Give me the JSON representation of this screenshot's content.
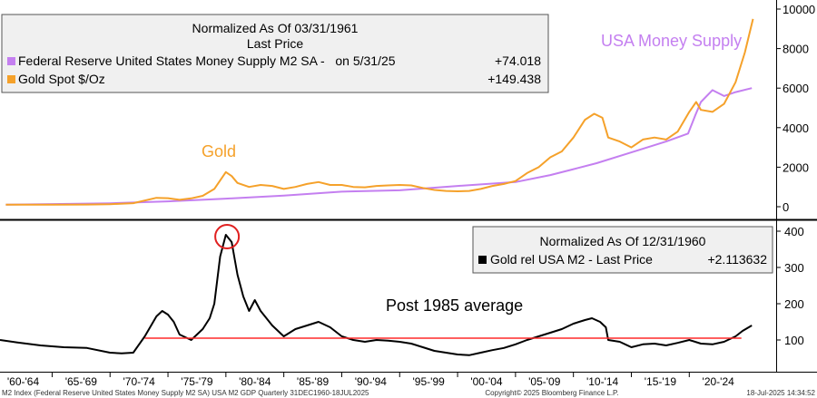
{
  "chart_data": [
    {
      "type": "line",
      "panel": "top",
      "ylim": [
        -500,
        10000
      ],
      "yticks": [
        0,
        2000,
        4000,
        6000,
        8000,
        10000
      ],
      "xlim": [
        1960.5,
        2027.5
      ],
      "legend": {
        "title_line1": "Normalized As Of 03/31/1961",
        "title_line2": "Last Price",
        "entries": [
          {
            "label": "Federal Reserve United States Money Supply M2 SA -   on 5/31/25",
            "value": "+74.018",
            "color": "#c47ff0"
          },
          {
            "label": "Gold Spot $/Oz",
            "value": "+149.438",
            "color": "#f5a12a"
          }
        ]
      },
      "annotations": [
        {
          "text": "Gold",
          "color": "#f5a12a"
        },
        {
          "text": "USA Money Supply",
          "color": "#c47ff0"
        }
      ],
      "series": [
        {
          "name": "Federal Reserve United States Money Supply M2 SA",
          "color": "#c47ff0",
          "points": [
            [
              1961,
              100
            ],
            [
              1965,
              135
            ],
            [
              1970,
              175
            ],
            [
              1975,
              270
            ],
            [
              1980,
              410
            ],
            [
              1985,
              560
            ],
            [
              1990,
              760
            ],
            [
              1995,
              830
            ],
            [
              2000,
              1050
            ],
            [
              2005,
              1250
            ],
            [
              2008,
              1600
            ],
            [
              2010,
              1900
            ],
            [
              2012,
              2200
            ],
            [
              2015,
              2750
            ],
            [
              2018,
              3300
            ],
            [
              2019.9,
              3700
            ],
            [
              2020.5,
              4600
            ],
            [
              2021,
              5300
            ],
            [
              2022,
              5900
            ],
            [
              2023,
              5600
            ],
            [
              2024,
              5800
            ],
            [
              2025.4,
              6000
            ]
          ]
        },
        {
          "name": "Gold Spot $/Oz",
          "color": "#f5a12a",
          "points": [
            [
              1961,
              100
            ],
            [
              1965,
              100
            ],
            [
              1968,
              110
            ],
            [
              1970,
              130
            ],
            [
              1972,
              180
            ],
            [
              1974,
              450
            ],
            [
              1975,
              430
            ],
            [
              1976,
              350
            ],
            [
              1977,
              420
            ],
            [
              1978,
              550
            ],
            [
              1979,
              900
            ],
            [
              1980,
              1750
            ],
            [
              1980.5,
              1550
            ],
            [
              1981,
              1200
            ],
            [
              1982,
              1000
            ],
            [
              1983,
              1100
            ],
            [
              1984,
              1050
            ],
            [
              1985,
              900
            ],
            [
              1986,
              1000
            ],
            [
              1987,
              1150
            ],
            [
              1988,
              1250
            ],
            [
              1989,
              1100
            ],
            [
              1990,
              1100
            ],
            [
              1991,
              1000
            ],
            [
              1992,
              980
            ],
            [
              1993,
              1050
            ],
            [
              1994,
              1080
            ],
            [
              1995,
              1100
            ],
            [
              1996,
              1080
            ],
            [
              1997,
              950
            ],
            [
              1998,
              850
            ],
            [
              1999,
              800
            ],
            [
              2000,
              780
            ],
            [
              2001,
              800
            ],
            [
              2002,
              900
            ],
            [
              2003,
              1050
            ],
            [
              2004,
              1150
            ],
            [
              2005,
              1300
            ],
            [
              2006,
              1700
            ],
            [
              2007,
              2000
            ],
            [
              2008,
              2500
            ],
            [
              2009,
              2800
            ],
            [
              2010,
              3500
            ],
            [
              2011,
              4400
            ],
            [
              2011.8,
              4700
            ],
            [
              2012.5,
              4500
            ],
            [
              2013,
              3500
            ],
            [
              2014,
              3300
            ],
            [
              2015,
              3000
            ],
            [
              2016,
              3400
            ],
            [
              2017,
              3500
            ],
            [
              2018,
              3400
            ],
            [
              2019,
              3800
            ],
            [
              2020,
              4800
            ],
            [
              2020.6,
              5300
            ],
            [
              2021,
              4900
            ],
            [
              2022,
              4800
            ],
            [
              2023,
              5200
            ],
            [
              2024,
              6300
            ],
            [
              2024.8,
              7800
            ],
            [
              2025.5,
              9500
            ]
          ]
        }
      ]
    },
    {
      "type": "line",
      "panel": "bottom",
      "ylim": [
        25,
        430
      ],
      "yticks": [
        100,
        200,
        300,
        400
      ],
      "xlim": [
        1960.5,
        2027.5
      ],
      "x_tick_labels": [
        "'60-'64",
        "'65-'69",
        "'70-'74",
        "'75-'79",
        "'80-'84",
        "'85-'89",
        "'90-'94",
        "'95-'99",
        "'00-'04",
        "'05-'09",
        "'10-'14",
        "'15-'19",
        "'20-'24"
      ],
      "legend": {
        "title": "Normalized As Of 12/31/1960",
        "entries": [
          {
            "label": "Gold rel USA M2 - Last Price",
            "value": "+2.113632",
            "color": "#000000"
          }
        ]
      },
      "annotations": [
        {
          "text": "Post 1985 average",
          "color": "#000000"
        }
      ],
      "reference_line": {
        "y": 105,
        "from_x": 1973,
        "to_x": 2024.5,
        "color": "#ff2a2a"
      },
      "highlight": {
        "x": 1980.1,
        "y": 385,
        "color": "#e02020"
      },
      "series": [
        {
          "name": "Gold rel USA M2",
          "color": "#000000",
          "points": [
            [
              1960.5,
              100
            ],
            [
              1962,
              93
            ],
            [
              1964,
              85
            ],
            [
              1966,
              80
            ],
            [
              1968,
              78
            ],
            [
              1970,
              65
            ],
            [
              1971,
              63
            ],
            [
              1972,
              65
            ],
            [
              1973,
              110
            ],
            [
              1974,
              165
            ],
            [
              1974.5,
              180
            ],
            [
              1975,
              170
            ],
            [
              1975.5,
              150
            ],
            [
              1976,
              115
            ],
            [
              1977,
              100
            ],
            [
              1978,
              130
            ],
            [
              1978.6,
              160
            ],
            [
              1979,
              200
            ],
            [
              1979.5,
              330
            ],
            [
              1980,
              390
            ],
            [
              1980.5,
              370
            ],
            [
              1981,
              280
            ],
            [
              1981.5,
              220
            ],
            [
              1982,
              180
            ],
            [
              1982.5,
              210
            ],
            [
              1983,
              180
            ],
            [
              1984,
              140
            ],
            [
              1985,
              110
            ],
            [
              1986,
              130
            ],
            [
              1987,
              140
            ],
            [
              1988,
              150
            ],
            [
              1989,
              135
            ],
            [
              1990,
              110
            ],
            [
              1991,
              100
            ],
            [
              1992,
              95
            ],
            [
              1993,
              100
            ],
            [
              1994,
              98
            ],
            [
              1995,
              95
            ],
            [
              1996,
              90
            ],
            [
              1997,
              80
            ],
            [
              1998,
              70
            ],
            [
              1999,
              65
            ],
            [
              2000,
              60
            ],
            [
              2001,
              58
            ],
            [
              2002,
              65
            ],
            [
              2003,
              72
            ],
            [
              2004,
              78
            ],
            [
              2005,
              88
            ],
            [
              2006,
              100
            ],
            [
              2007,
              110
            ],
            [
              2008,
              120
            ],
            [
              2009,
              130
            ],
            [
              2010,
              145
            ],
            [
              2011,
              155
            ],
            [
              2011.6,
              160
            ],
            [
              2012.3,
              150
            ],
            [
              2012.8,
              135
            ],
            [
              2013,
              100
            ],
            [
              2014,
              95
            ],
            [
              2015,
              80
            ],
            [
              2016,
              88
            ],
            [
              2017,
              90
            ],
            [
              2018,
              85
            ],
            [
              2019,
              92
            ],
            [
              2020,
              100
            ],
            [
              2021,
              90
            ],
            [
              2022,
              88
            ],
            [
              2023,
              95
            ],
            [
              2024,
              110
            ],
            [
              2024.6,
              125
            ],
            [
              2025.4,
              140
            ]
          ]
        }
      ]
    }
  ],
  "footer": {
    "left": "M2 Index (Federal Reserve United States Money Supply M2 SA) USA M2 GDP  Quarterly 31DEC1960-18JUL2025",
    "center": "Copyright© 2025 Bloomberg Finance L.P.",
    "right": "18-Jul-2025 14:34:52"
  }
}
